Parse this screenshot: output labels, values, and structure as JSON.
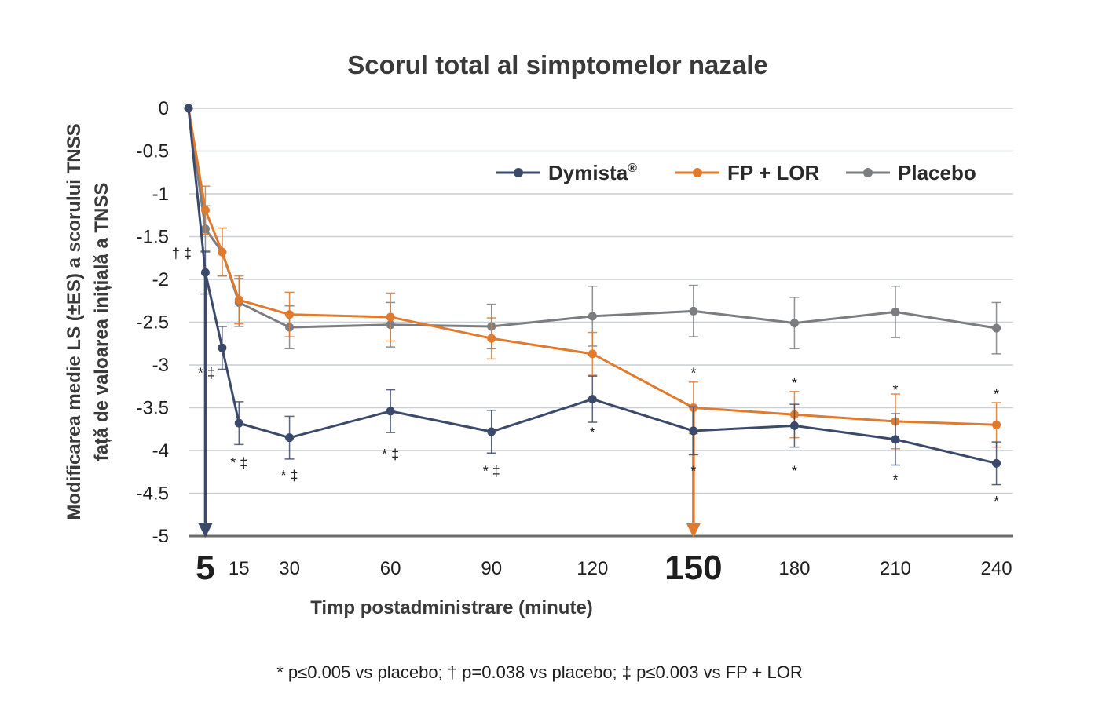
{
  "chart_data": {
    "type": "line",
    "title": "Scorul total al simptomelor nazale",
    "ylabel_line1": "Modificarea medie LS (±ES) a scorului TNSS",
    "ylabel_line2": "față de valoarea inițială a TNSS",
    "xlabel": "Timp  postadministrare (minute)",
    "ylim": [
      -5,
      0
    ],
    "yticks": [
      0,
      -0.5,
      -1,
      -1.5,
      -2,
      -2.5,
      -3,
      -3.5,
      -4,
      -4.5,
      -5
    ],
    "ytick_labels": [
      "0",
      "-0.5",
      "-1",
      "-1.5",
      "-2",
      "-2.5",
      "-3",
      "-3.5",
      "-4",
      "-4.5",
      "-5"
    ],
    "xticks": [
      5,
      15,
      30,
      60,
      90,
      120,
      150,
      180,
      210,
      240
    ],
    "xtick_labels": [
      "5",
      "15",
      "30",
      "60",
      "90",
      "120",
      "150",
      "180",
      "210",
      "240"
    ],
    "highlight_ticks": [
      {
        "x": 5,
        "series": "Dymista®"
      },
      {
        "x": 150,
        "series": "FP + LOR"
      }
    ],
    "grid": true,
    "legend_position": "top-right",
    "x": [
      0,
      5,
      10,
      15,
      30,
      60,
      90,
      120,
      150,
      180,
      210,
      240
    ],
    "series": [
      {
        "name": "Dymista",
        "legend_label": "Dymista",
        "legend_sup": "®",
        "color": "#3b4a6b",
        "values": [
          0,
          -1.92,
          -2.8,
          -3.68,
          -3.85,
          -3.54,
          -3.78,
          -3.4,
          -3.77,
          -3.71,
          -3.87,
          -4.15
        ],
        "errors": [
          0,
          0.25,
          0.25,
          0.25,
          0.25,
          0.25,
          0.25,
          0.27,
          0.28,
          0.25,
          0.3,
          0.25
        ]
      },
      {
        "name": "FP + LOR",
        "legend_label": "FP + LOR",
        "color": "#e07a2e",
        "values": [
          0,
          -1.19,
          -1.68,
          -2.24,
          -2.41,
          -2.44,
          -2.69,
          -2.87,
          -3.5,
          -3.58,
          -3.66,
          -3.7
        ],
        "errors": [
          0,
          0.28,
          0.28,
          0.28,
          0.26,
          0.28,
          0.24,
          0.25,
          0.3,
          0.27,
          0.32,
          0.26
        ]
      },
      {
        "name": "Placebo",
        "legend_label": "Placebo",
        "color": "#7b7d80",
        "values": [
          0,
          -1.41,
          -1.68,
          -2.27,
          -2.56,
          -2.53,
          -2.55,
          -2.43,
          -2.37,
          -2.51,
          -2.38,
          -2.57
        ],
        "errors": [
          0,
          0.27,
          0.28,
          0.28,
          0.25,
          0.26,
          0.26,
          0.35,
          0.3,
          0.3,
          0.3,
          0.3
        ]
      }
    ],
    "annotations": [
      {
        "text": "† ‡",
        "x": 5,
        "y": -1.75,
        "dx": -30
      },
      {
        "text": "* ‡",
        "x": 10,
        "y": -3.15,
        "dx": -20
      },
      {
        "text": "* ‡",
        "x": 15,
        "y": -4.2,
        "dx": 0
      },
      {
        "text": "* ‡",
        "x": 30,
        "y": -4.35,
        "dx": 0
      },
      {
        "text": "* ‡",
        "x": 60,
        "y": -4.1,
        "dx": 0
      },
      {
        "text": "* ‡",
        "x": 90,
        "y": -4.3,
        "dx": 0
      },
      {
        "text": "*",
        "x": 120,
        "y": -3.85,
        "dx": 0
      },
      {
        "text": "*",
        "x": 150,
        "y": -3.15,
        "dx": 0
      },
      {
        "text": "*",
        "x": 150,
        "y": -4.3,
        "dx": 0
      },
      {
        "text": "*",
        "x": 180,
        "y": -3.27,
        "dx": 0
      },
      {
        "text": "*",
        "x": 180,
        "y": -4.3,
        "dx": 0
      },
      {
        "text": "*",
        "x": 210,
        "y": -3.35,
        "dx": 0
      },
      {
        "text": "*",
        "x": 210,
        "y": -4.4,
        "dx": 0
      },
      {
        "text": "*",
        "x": 240,
        "y": -3.4,
        "dx": 0
      },
      {
        "text": "*",
        "x": 240,
        "y": -4.65,
        "dx": 0
      }
    ],
    "footnote": "* p≤0.005 vs placebo; † p=0.038 vs placebo; ‡ p≤0.003 vs FP + LOR"
  }
}
